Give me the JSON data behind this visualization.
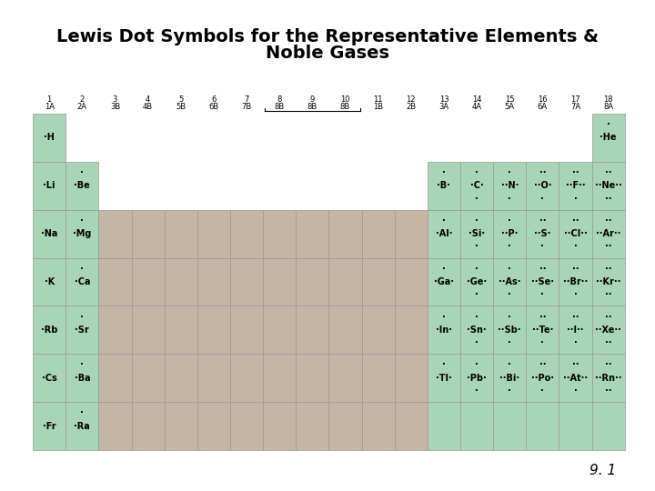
{
  "title_line1": "Lewis Dot Symbols for the Representative Elements &",
  "title_line2": "Noble Gases",
  "page_num": "9. 1",
  "bg_color": "#ffffff",
  "green_color": "#a8d5b5",
  "tan_color": "#c4b5a5",
  "cell_edge_color": "#999999",
  "title_fontsize": 14,
  "label_fontsize": 6,
  "elem_fontsize": 7,
  "group_headers": [
    {
      "col": 0,
      "num": "1",
      "let": "1A"
    },
    {
      "col": 1,
      "num": "2",
      "let": "2A"
    },
    {
      "col": 2,
      "num": "3",
      "let": "3B"
    },
    {
      "col": 3,
      "num": "4",
      "let": "4B"
    },
    {
      "col": 4,
      "num": "5",
      "let": "5B"
    },
    {
      "col": 5,
      "num": "6",
      "let": "6B"
    },
    {
      "col": 6,
      "num": "7",
      "let": "7B"
    },
    {
      "col": 7,
      "num": "8",
      "let": "8B"
    },
    {
      "col": 8,
      "num": "9",
      "let": "8B"
    },
    {
      "col": 9,
      "num": "10",
      "let": "8B"
    },
    {
      "col": 10,
      "num": "11",
      "let": "1B"
    },
    {
      "col": 11,
      "num": "12",
      "let": "2B"
    },
    {
      "col": 12,
      "num": "13",
      "let": "3A"
    },
    {
      "col": 13,
      "num": "14",
      "let": "4A"
    },
    {
      "col": 14,
      "num": "15",
      "let": "5A"
    },
    {
      "col": 15,
      "num": "16",
      "let": "6A"
    },
    {
      "col": 16,
      "num": "17",
      "let": "7A"
    },
    {
      "col": 17,
      "num": "18",
      "let": "8A"
    }
  ],
  "elements": [
    {
      "col": 0,
      "row": 0,
      "sym": "H",
      "v": 1
    },
    {
      "col": 0,
      "row": 1,
      "sym": "Li",
      "v": 1
    },
    {
      "col": 1,
      "row": 1,
      "sym": "Be",
      "v": 2
    },
    {
      "col": 0,
      "row": 2,
      "sym": "Na",
      "v": 1
    },
    {
      "col": 1,
      "row": 2,
      "sym": "Mg",
      "v": 2
    },
    {
      "col": 0,
      "row": 3,
      "sym": "K",
      "v": 1
    },
    {
      "col": 1,
      "row": 3,
      "sym": "Ca",
      "v": 2
    },
    {
      "col": 0,
      "row": 4,
      "sym": "Rb",
      "v": 1
    },
    {
      "col": 1,
      "row": 4,
      "sym": "Sr",
      "v": 2
    },
    {
      "col": 0,
      "row": 5,
      "sym": "Cs",
      "v": 1
    },
    {
      "col": 1,
      "row": 5,
      "sym": "Ba",
      "v": 2
    },
    {
      "col": 0,
      "row": 6,
      "sym": "Fr",
      "v": 1
    },
    {
      "col": 1,
      "row": 6,
      "sym": "Ra",
      "v": 2
    },
    {
      "col": 12,
      "row": 1,
      "sym": "B",
      "v": 3
    },
    {
      "col": 13,
      "row": 1,
      "sym": "C",
      "v": 4
    },
    {
      "col": 14,
      "row": 1,
      "sym": "N",
      "v": 5
    },
    {
      "col": 15,
      "row": 1,
      "sym": "O",
      "v": 6
    },
    {
      "col": 16,
      "row": 1,
      "sym": "F",
      "v": 7
    },
    {
      "col": 17,
      "row": 0,
      "sym": "He",
      "v": 2
    },
    {
      "col": 17,
      "row": 1,
      "sym": "Ne",
      "v": 8
    },
    {
      "col": 12,
      "row": 2,
      "sym": "Al",
      "v": 3
    },
    {
      "col": 13,
      "row": 2,
      "sym": "Si",
      "v": 4
    },
    {
      "col": 14,
      "row": 2,
      "sym": "P",
      "v": 5
    },
    {
      "col": 15,
      "row": 2,
      "sym": "S",
      "v": 6
    },
    {
      "col": 16,
      "row": 2,
      "sym": "Cl",
      "v": 7
    },
    {
      "col": 17,
      "row": 2,
      "sym": "Ar",
      "v": 8
    },
    {
      "col": 12,
      "row": 3,
      "sym": "Ga",
      "v": 3
    },
    {
      "col": 13,
      "row": 3,
      "sym": "Ge",
      "v": 4
    },
    {
      "col": 14,
      "row": 3,
      "sym": "As",
      "v": 5
    },
    {
      "col": 15,
      "row": 3,
      "sym": "Se",
      "v": 6
    },
    {
      "col": 16,
      "row": 3,
      "sym": "Br",
      "v": 7
    },
    {
      "col": 17,
      "row": 3,
      "sym": "Kr",
      "v": 8
    },
    {
      "col": 12,
      "row": 4,
      "sym": "In",
      "v": 3
    },
    {
      "col": 13,
      "row": 4,
      "sym": "Sn",
      "v": 4
    },
    {
      "col": 14,
      "row": 4,
      "sym": "Sb",
      "v": 5
    },
    {
      "col": 15,
      "row": 4,
      "sym": "Te",
      "v": 6
    },
    {
      "col": 16,
      "row": 4,
      "sym": "I",
      "v": 7
    },
    {
      "col": 17,
      "row": 4,
      "sym": "Xe",
      "v": 8
    },
    {
      "col": 12,
      "row": 5,
      "sym": "Tl",
      "v": 3
    },
    {
      "col": 13,
      "row": 5,
      "sym": "Pb",
      "v": 4
    },
    {
      "col": 14,
      "row": 5,
      "sym": "Bi",
      "v": 5
    },
    {
      "col": 15,
      "row": 5,
      "sym": "Po",
      "v": 6
    },
    {
      "col": 16,
      "row": 5,
      "sym": "At",
      "v": 7
    },
    {
      "col": 17,
      "row": 5,
      "sym": "Rn",
      "v": 8
    }
  ]
}
